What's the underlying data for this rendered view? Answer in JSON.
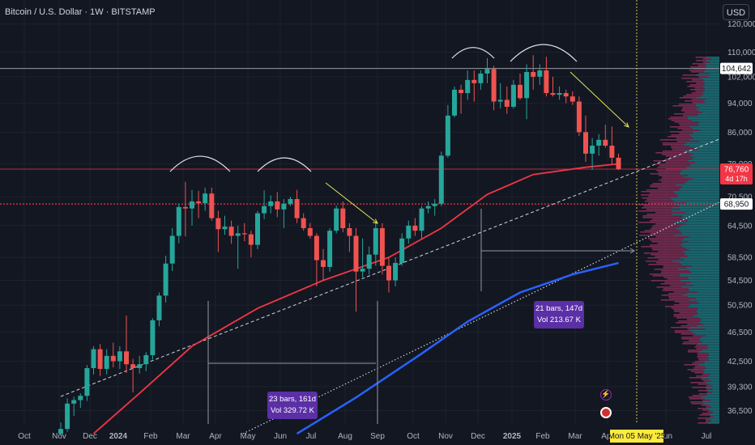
{
  "header": {
    "title": "Bitcoin / U.S. Dollar · 1W · BITSTAMP",
    "currency_button": "USD"
  },
  "colors": {
    "background": "#131722",
    "up": "#26a69a",
    "down": "#ef5350",
    "ma_red": "#f23645",
    "ma_blue": "#2962ff",
    "volume_profile_up": "#1e7f86",
    "volume_profile_down": "#8c2f5a",
    "projection": "#e4e25a",
    "measure_box": "#5b2fa6",
    "crosshair_date": "#ffeb3b"
  },
  "chart_data": {
    "type": "candlestick",
    "title": "Bitcoin / U.S. Dollar · 1W · BITSTAMP",
    "timeframe": "1W",
    "x_axis": {
      "tick_labels": [
        "Oct",
        "Nov",
        "Dec",
        "2024",
        "Feb",
        "Mar",
        "Apr",
        "May",
        "Jun",
        "Jul",
        "Aug",
        "Sep",
        "Oct",
        "Nov",
        "Dec",
        "2025",
        "Feb",
        "Mar",
        "Apr",
        "Jun",
        "Jul"
      ],
      "range": [
        "2023-10",
        "2025-07"
      ],
      "crosshair_label": "Mon 05 May '25"
    },
    "y_axis": {
      "tick_labels": [
        "120,000",
        "110,000",
        "102,000",
        "94,000",
        "86,000",
        "78,000",
        "70,500",
        "64,500",
        "58,500",
        "54,500",
        "50,500",
        "46,500",
        "42,500",
        "39,300",
        "36,500"
      ],
      "scale": "log",
      "range": [
        34000,
        126000
      ],
      "price_labels": [
        {
          "value": "104,642",
          "style": "white"
        },
        {
          "value": "76,760",
          "sub": "4d 17h",
          "style": "red"
        },
        {
          "value": "68,950",
          "style": "white"
        }
      ]
    },
    "candles": [
      {
        "x": 0,
        "o": 34000,
        "h": 35200,
        "l": 33800,
        "c": 34500
      },
      {
        "x": 1,
        "o": 34500,
        "h": 37900,
        "l": 34200,
        "c": 37300
      },
      {
        "x": 2,
        "o": 37300,
        "h": 38100,
        "l": 35900,
        "c": 37700
      },
      {
        "x": 3,
        "o": 37700,
        "h": 38500,
        "l": 36800,
        "c": 38200
      },
      {
        "x": 4,
        "o": 38200,
        "h": 42000,
        "l": 37600,
        "c": 41600
      },
      {
        "x": 5,
        "o": 41600,
        "h": 44500,
        "l": 40800,
        "c": 44100
      },
      {
        "x": 6,
        "o": 44100,
        "h": 44800,
        "l": 40600,
        "c": 41500
      },
      {
        "x": 7,
        "o": 41500,
        "h": 44100,
        "l": 40800,
        "c": 43200
      },
      {
        "x": 8,
        "o": 43200,
        "h": 45000,
        "l": 41700,
        "c": 42500
      },
      {
        "x": 9,
        "o": 42500,
        "h": 44500,
        "l": 41500,
        "c": 43800
      },
      {
        "x": 10,
        "o": 43800,
        "h": 48900,
        "l": 41000,
        "c": 42100
      },
      {
        "x": 11,
        "o": 42100,
        "h": 42800,
        "l": 38600,
        "c": 41600
      },
      {
        "x": 12,
        "o": 41600,
        "h": 43200,
        "l": 40900,
        "c": 42100
      },
      {
        "x": 13,
        "o": 42100,
        "h": 43700,
        "l": 41200,
        "c": 43300
      },
      {
        "x": 14,
        "o": 43300,
        "h": 48500,
        "l": 42700,
        "c": 48200
      },
      {
        "x": 15,
        "o": 48200,
        "h": 52500,
        "l": 47300,
        "c": 52000
      },
      {
        "x": 16,
        "o": 52000,
        "h": 58800,
        "l": 50900,
        "c": 57400
      },
      {
        "x": 17,
        "o": 57400,
        "h": 64000,
        "l": 56100,
        "c": 62500
      },
      {
        "x": 18,
        "o": 62500,
        "h": 69000,
        "l": 61100,
        "c": 68300
      },
      {
        "x": 19,
        "o": 68300,
        "h": 73800,
        "l": 62400,
        "c": 68000
      },
      {
        "x": 20,
        "o": 68000,
        "h": 72000,
        "l": 64500,
        "c": 69500
      },
      {
        "x": 21,
        "o": 69500,
        "h": 71800,
        "l": 66000,
        "c": 69100
      },
      {
        "x": 22,
        "o": 69100,
        "h": 72500,
        "l": 67500,
        "c": 71200
      },
      {
        "x": 23,
        "o": 71200,
        "h": 72500,
        "l": 65500,
        "c": 66000
      },
      {
        "x": 24,
        "o": 66000,
        "h": 67500,
        "l": 59500,
        "c": 63800
      },
      {
        "x": 25,
        "o": 63800,
        "h": 66500,
        "l": 62700,
        "c": 64300
      },
      {
        "x": 26,
        "o": 64300,
        "h": 65500,
        "l": 61000,
        "c": 62500
      },
      {
        "x": 27,
        "o": 62500,
        "h": 64500,
        "l": 56500,
        "c": 63000
      },
      {
        "x": 28,
        "o": 63000,
        "h": 65000,
        "l": 61500,
        "c": 62800
      },
      {
        "x": 29,
        "o": 62800,
        "h": 63500,
        "l": 58500,
        "c": 60800
      },
      {
        "x": 30,
        "o": 60800,
        "h": 67500,
        "l": 60000,
        "c": 67000
      },
      {
        "x": 31,
        "o": 67000,
        "h": 71900,
        "l": 65800,
        "c": 68500
      },
      {
        "x": 32,
        "o": 68500,
        "h": 70800,
        "l": 67000,
        "c": 69500
      },
      {
        "x": 33,
        "o": 69500,
        "h": 71500,
        "l": 66200,
        "c": 67800
      },
      {
        "x": 34,
        "o": 67800,
        "h": 70000,
        "l": 64000,
        "c": 69000
      },
      {
        "x": 35,
        "o": 69000,
        "h": 70500,
        "l": 68500,
        "c": 70000
      },
      {
        "x": 36,
        "o": 70000,
        "h": 72000,
        "l": 65000,
        "c": 66000
      },
      {
        "x": 37,
        "o": 66000,
        "h": 67000,
        "l": 63500,
        "c": 64000
      },
      {
        "x": 38,
        "o": 64000,
        "h": 65000,
        "l": 62000,
        "c": 62500
      },
      {
        "x": 39,
        "o": 62500,
        "h": 63000,
        "l": 53500,
        "c": 58000
      },
      {
        "x": 40,
        "o": 58000,
        "h": 60000,
        "l": 54500,
        "c": 56800
      },
      {
        "x": 41,
        "o": 56800,
        "h": 64000,
        "l": 56000,
        "c": 63500
      },
      {
        "x": 42,
        "o": 63500,
        "h": 68600,
        "l": 63000,
        "c": 68000
      },
      {
        "x": 43,
        "o": 68000,
        "h": 69500,
        "l": 63200,
        "c": 64000
      },
      {
        "x": 44,
        "o": 64000,
        "h": 65000,
        "l": 59500,
        "c": 62500
      },
      {
        "x": 45,
        "o": 62500,
        "h": 64000,
        "l": 49500,
        "c": 56000
      },
      {
        "x": 46,
        "o": 56000,
        "h": 62000,
        "l": 55000,
        "c": 56500
      },
      {
        "x": 47,
        "o": 56500,
        "h": 60500,
        "l": 55500,
        "c": 59000
      },
      {
        "x": 48,
        "o": 59000,
        "h": 65000,
        "l": 57000,
        "c": 64000
      },
      {
        "x": 49,
        "o": 64000,
        "h": 65000,
        "l": 55500,
        "c": 57000
      },
      {
        "x": 50,
        "o": 57000,
        "h": 58500,
        "l": 52500,
        "c": 54500
      },
      {
        "x": 51,
        "o": 54500,
        "h": 58500,
        "l": 53500,
        "c": 57500
      },
      {
        "x": 52,
        "o": 57500,
        "h": 63000,
        "l": 57000,
        "c": 62000
      },
      {
        "x": 53,
        "o": 62000,
        "h": 65500,
        "l": 61000,
        "c": 64500
      },
      {
        "x": 54,
        "o": 64500,
        "h": 66000,
        "l": 62500,
        "c": 63500
      },
      {
        "x": 55,
        "o": 63500,
        "h": 68500,
        "l": 62000,
        "c": 68000
      },
      {
        "x": 56,
        "o": 68000,
        "h": 69500,
        "l": 67000,
        "c": 68500
      },
      {
        "x": 57,
        "o": 68500,
        "h": 70000,
        "l": 66500,
        "c": 69000
      },
      {
        "x": 58,
        "o": 69000,
        "h": 81000,
        "l": 68500,
        "c": 80000
      },
      {
        "x": 59,
        "o": 80000,
        "h": 93500,
        "l": 79500,
        "c": 90500
      },
      {
        "x": 60,
        "o": 90500,
        "h": 99000,
        "l": 90000,
        "c": 98000
      },
      {
        "x": 61,
        "o": 98000,
        "h": 99500,
        "l": 91000,
        "c": 97000
      },
      {
        "x": 62,
        "o": 97000,
        "h": 104000,
        "l": 95000,
        "c": 101000
      },
      {
        "x": 63,
        "o": 101000,
        "h": 104000,
        "l": 94500,
        "c": 100000
      },
      {
        "x": 64,
        "o": 100000,
        "h": 104000,
        "l": 98000,
        "c": 103000
      },
      {
        "x": 65,
        "o": 103000,
        "h": 108000,
        "l": 100000,
        "c": 104500
      },
      {
        "x": 66,
        "o": 104500,
        "h": 105500,
        "l": 92000,
        "c": 94500
      },
      {
        "x": 67,
        "o": 94500,
        "h": 100000,
        "l": 92500,
        "c": 95000
      },
      {
        "x": 68,
        "o": 95000,
        "h": 99000,
        "l": 91000,
        "c": 93000
      },
      {
        "x": 69,
        "o": 93000,
        "h": 101000,
        "l": 92500,
        "c": 99500
      },
      {
        "x": 70,
        "o": 99500,
        "h": 103000,
        "l": 95000,
        "c": 95500
      },
      {
        "x": 71,
        "o": 95500,
        "h": 106000,
        "l": 89500,
        "c": 103500
      },
      {
        "x": 72,
        "o": 103500,
        "h": 109000,
        "l": 98000,
        "c": 102000
      },
      {
        "x": 73,
        "o": 102000,
        "h": 106000,
        "l": 99500,
        "c": 104000
      },
      {
        "x": 74,
        "o": 104000,
        "h": 108500,
        "l": 96000,
        "c": 97000
      },
      {
        "x": 75,
        "o": 97000,
        "h": 102000,
        "l": 96000,
        "c": 96500
      },
      {
        "x": 76,
        "o": 96500,
        "h": 99000,
        "l": 95000,
        "c": 97000
      },
      {
        "x": 77,
        "o": 97000,
        "h": 98000,
        "l": 94000,
        "c": 96000
      },
      {
        "x": 78,
        "o": 96000,
        "h": 97500,
        "l": 93500,
        "c": 94500
      },
      {
        "x": 79,
        "o": 94500,
        "h": 96000,
        "l": 85000,
        "c": 86000
      },
      {
        "x": 80,
        "o": 86000,
        "h": 90500,
        "l": 78500,
        "c": 80500
      },
      {
        "x": 81,
        "o": 80500,
        "h": 84500,
        "l": 76600,
        "c": 82500
      },
      {
        "x": 82,
        "o": 82500,
        "h": 85500,
        "l": 80000,
        "c": 84000
      },
      {
        "x": 83,
        "o": 84000,
        "h": 88000,
        "l": 82000,
        "c": 82500
      },
      {
        "x": 84,
        "o": 82500,
        "h": 87500,
        "l": 78000,
        "c": 79500
      },
      {
        "x": 85,
        "o": 79500,
        "h": 80500,
        "l": 76500,
        "c": 76760
      }
    ],
    "moving_averages": [
      {
        "color": "red",
        "points": [
          [
            5,
            34000
          ],
          [
            12,
            38500
          ],
          [
            20,
            44500
          ],
          [
            30,
            50000
          ],
          [
            40,
            54500
          ],
          [
            50,
            58500
          ],
          [
            58,
            64000
          ],
          [
            65,
            71000
          ],
          [
            72,
            75500
          ],
          [
            80,
            77200
          ],
          [
            85,
            78000
          ]
        ]
      },
      {
        "color": "blue",
        "points": [
          [
            36,
            34000
          ],
          [
            45,
            38000
          ],
          [
            55,
            43500
          ],
          [
            62,
            48000
          ],
          [
            70,
            52500
          ],
          [
            78,
            55500
          ],
          [
            85,
            57500
          ]
        ]
      }
    ],
    "horizontal_levels": [
      104642,
      76760,
      68950
    ],
    "annotations": {
      "measure_1": {
        "line1": "23 bars, 161d",
        "line2": "Vol 329.72 K"
      },
      "measure_2": {
        "line1": "21 bars, 147d",
        "line2": "Vol 213.67 K"
      },
      "arcs": "double-top arc pairs drawn above the 2024 and 2025 highs",
      "arrows": "yellow downward projection arrows after each double top"
    }
  }
}
